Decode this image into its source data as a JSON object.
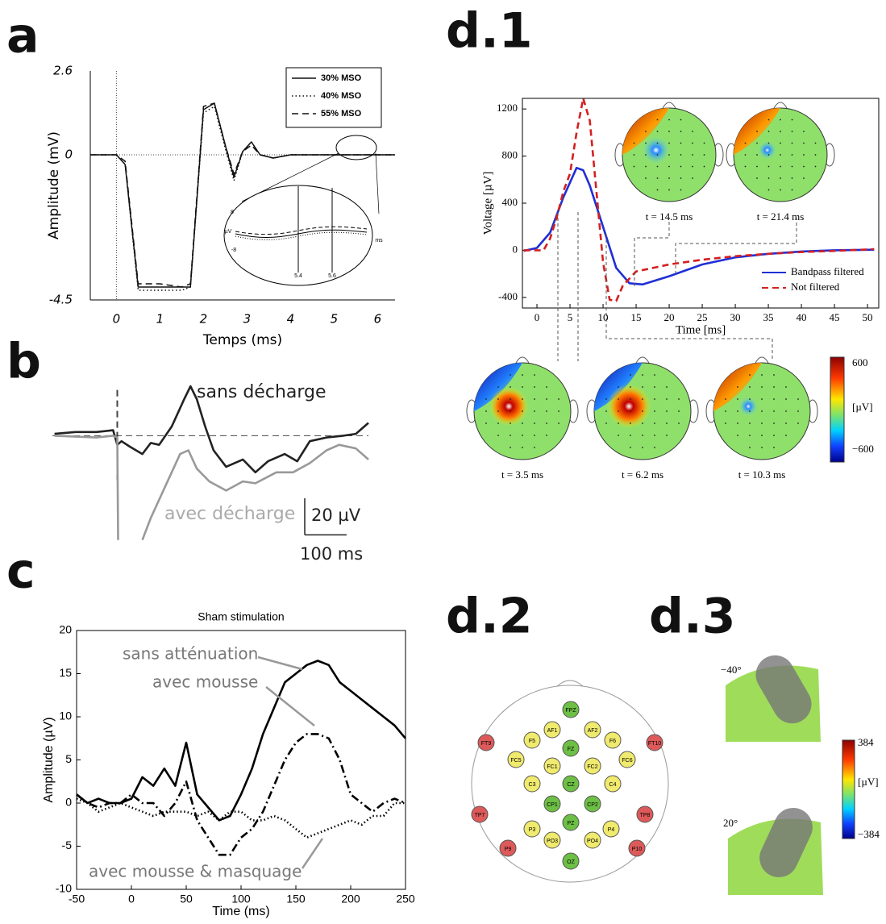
{
  "panels": {
    "a": "a",
    "b": "b",
    "c": "c",
    "d1": "d.1",
    "d2": "d.2",
    "d3": "d.3"
  },
  "chart_data": [
    {
      "type": "line",
      "frame": "left-bottom",
      "zero_lines": true,
      "xlabel": "Temps (ms)",
      "ylabel": "Amplitude (mV)",
      "xlim": [
        -0.6,
        6.4
      ],
      "ylim": [
        -4.5,
        2.6
      ],
      "xticks": [
        0,
        1,
        2,
        3,
        4,
        5,
        6
      ],
      "yticks": [
        -4.5,
        0,
        2.6
      ],
      "legend": "upper right",
      "x": [
        -0.6,
        0,
        0.2,
        0.5,
        1,
        1.5,
        1.7,
        2.0,
        2.25,
        2.5,
        2.7,
        2.9,
        3.1,
        3.3,
        3.6,
        4,
        5,
        6,
        6.4
      ],
      "series": [
        {
          "name": "30% MSO",
          "color": "#111111",
          "dash": "solid",
          "values": [
            0,
            0,
            -0.3,
            -4.1,
            -4.1,
            -4.1,
            -4.1,
            1.4,
            1.6,
            0.3,
            -0.7,
            0.1,
            0.4,
            0,
            -0.1,
            0,
            0,
            0,
            0
          ]
        },
        {
          "name": "40% MSO",
          "color": "#111111",
          "dash": "dotted",
          "values": [
            0,
            0,
            -0.3,
            -4.2,
            -4.2,
            -4.2,
            -4.1,
            1.3,
            1.5,
            0.2,
            -0.8,
            0.1,
            0.4,
            0,
            -0.1,
            0,
            0,
            0,
            0
          ]
        },
        {
          "name": "55% MSO",
          "color": "#111111",
          "dash": "dashed",
          "values": [
            0,
            0,
            -0.2,
            -4.0,
            -4.0,
            -4.1,
            -4.0,
            1.5,
            1.6,
            0.3,
            -0.6,
            0.1,
            0.3,
            0,
            -0.1,
            0,
            0,
            0,
            0
          ]
        }
      ],
      "inset_labels": [
        "8",
        "µV",
        "-8",
        "ms",
        "5.4",
        "5.6"
      ]
    },
    {
      "type": "line",
      "frame": "none",
      "zero_lines": true,
      "xlim": [
        -155,
        600
      ],
      "ylim": [
        -58,
        31
      ],
      "scalebar": {
        "y": 20,
        "y_label": "20 µV",
        "x": 100,
        "x_label": "100 ms"
      },
      "series": [
        {
          "name": "sans décharge",
          "color": "#222222",
          "dash": "solid",
          "x": [
            -150,
            -100,
            -50,
            -10,
            0,
            10,
            30,
            60,
            80,
            100,
            130,
            160,
            175,
            190,
            210,
            230,
            260,
            300,
            330,
            360,
            400,
            430,
            460,
            500,
            540,
            570,
            600
          ],
          "values": [
            1,
            2,
            2,
            3,
            -5,
            -3,
            -6,
            -10,
            -4,
            -5,
            5,
            20,
            27,
            20,
            5,
            -8,
            -17,
            -13,
            -20,
            -14,
            -10,
            -14,
            -3,
            -1,
            0,
            1,
            7
          ]
        },
        {
          "name": "avec décharge",
          "color": "#999999",
          "dash": "solid",
          "x": [
            -150,
            -50,
            -10,
            0,
            2,
            5,
            60,
            80,
            120,
            150,
            170,
            190,
            220,
            260,
            300,
            330,
            380,
            420,
            460,
            500,
            530,
            570,
            600
          ],
          "values": [
            0,
            -1,
            0,
            -1,
            -57,
            null,
            -57,
            -45,
            -25,
            -10,
            -8,
            -18,
            -25,
            -30,
            -25,
            -26,
            -20,
            -20,
            -15,
            -8,
            -5,
            -7,
            -13
          ]
        }
      ]
    },
    {
      "type": "line",
      "frame": "box",
      "title": "Sham stimulation",
      "xlabel": "Time (ms)",
      "ylabel": "Amplitude (µV)",
      "xlim": [
        -50,
        250
      ],
      "ylim": [
        -10,
        20
      ],
      "xticks": [
        -50,
        0,
        50,
        100,
        150,
        200,
        250
      ],
      "yticks": [
        -10,
        -5,
        0,
        5,
        10,
        15,
        20
      ],
      "x": [
        -50,
        -40,
        -30,
        -20,
        -10,
        0,
        10,
        20,
        30,
        40,
        50,
        60,
        70,
        80,
        90,
        100,
        110,
        120,
        130,
        140,
        150,
        160,
        170,
        180,
        190,
        200,
        210,
        220,
        230,
        240,
        250
      ],
      "series": [
        {
          "name": "sans atténuation",
          "color": "#000000",
          "dash": "solid",
          "values": [
            1,
            0,
            0.5,
            0,
            0,
            0.5,
            3,
            2,
            4,
            2,
            7,
            1,
            -0.5,
            -2,
            -1.5,
            1,
            4,
            8,
            11,
            14,
            15,
            16,
            16.5,
            16,
            14,
            13,
            12,
            11,
            10,
            9,
            7.5
          ]
        },
        {
          "name": "avec mousse",
          "color": "#000000",
          "dash": "dashdot",
          "values": [
            1,
            0,
            -0.5,
            0,
            0,
            1,
            0,
            0,
            -1.5,
            0,
            2.5,
            -2,
            -4,
            -6,
            -6,
            -4,
            -3,
            -1,
            2,
            5,
            7,
            8,
            8,
            7.5,
            5,
            1,
            0,
            -1,
            0,
            0.5,
            0
          ]
        },
        {
          "name": "avec mousse & masquage",
          "color": "#000000",
          "dash": "dotted",
          "values": [
            0.5,
            0,
            -1,
            -0.5,
            0,
            -0.5,
            -1,
            -1.5,
            -1,
            -1,
            -1,
            -1.5,
            -1,
            -2,
            -1,
            -1,
            -2,
            -2,
            -1.5,
            -2,
            -3,
            -4,
            -3.5,
            -3,
            -2.5,
            -2,
            -2.5,
            -1.5,
            -1.5,
            0,
            0
          ]
        }
      ]
    },
    {
      "type": "line",
      "frame": "box",
      "xlabel": "Time [ms]",
      "ylabel": "Voltage [µV]",
      "xlim": [
        -2.2,
        51.7
      ],
      "ylim": [
        -490,
        1290
      ],
      "xticks": [
        0,
        5,
        10,
        15,
        20,
        25,
        30,
        35,
        40,
        45,
        50
      ],
      "yticks": [
        -400,
        0,
        400,
        800,
        1200
      ],
      "legend": "lower right",
      "series": [
        {
          "name": "Bandpass filtered",
          "color": "#1f2fd6",
          "dash": "solid",
          "x": [
            -2,
            0,
            2,
            4,
            6,
            7,
            8,
            10,
            12,
            14,
            16,
            20,
            25,
            30,
            35,
            40,
            45,
            51
          ],
          "values": [
            -5,
            20,
            150,
            450,
            700,
            680,
            550,
            200,
            -150,
            -280,
            -290,
            -220,
            -120,
            -60,
            -30,
            -10,
            0,
            5
          ]
        },
        {
          "name": "Not filtered",
          "color": "#d42020",
          "dash": "dashed",
          "x": [
            -2,
            1,
            2,
            3,
            4,
            5,
            6,
            7,
            8,
            9,
            10,
            11,
            12,
            13,
            15,
            20,
            25,
            30,
            35,
            40,
            45,
            51
          ],
          "values": [
            0,
            0,
            100,
            280,
            500,
            650,
            1000,
            1290,
            1100,
            500,
            -100,
            -420,
            -430,
            -300,
            -180,
            -120,
            -80,
            -50,
            -30,
            -15,
            -5,
            10
          ]
        }
      ]
    }
  ],
  "topomaps": {
    "labels": [
      "t = 14.5 ms",
      "t = 21.4 ms",
      "t = 3.5 ms",
      "t = 6.2 ms",
      "t = 10.3 ms"
    ],
    "colorbar": {
      "max": "600",
      "unit": "[µV]",
      "min": "−600"
    }
  },
  "electrodes": [
    {
      "label": "FPZ",
      "color": "#6dbf45"
    },
    {
      "label": "AF1",
      "color": "#f0ea6e"
    },
    {
      "label": "AF2",
      "color": "#f0ea6e"
    },
    {
      "label": "F5",
      "color": "#f0ea6e"
    },
    {
      "label": "FZ",
      "color": "#6dbf45"
    },
    {
      "label": "F6",
      "color": "#f0ea6e"
    },
    {
      "label": "FT9",
      "color": "#de5a5a"
    },
    {
      "label": "FT10",
      "color": "#de5a5a"
    },
    {
      "label": "FC5",
      "color": "#f0ea6e"
    },
    {
      "label": "FC1",
      "color": "#f0ea6e"
    },
    {
      "label": "FC2",
      "color": "#f0ea6e"
    },
    {
      "label": "FC6",
      "color": "#f0ea6e"
    },
    {
      "label": "C3",
      "color": "#f0ea6e"
    },
    {
      "label": "CZ",
      "color": "#6dbf45"
    },
    {
      "label": "C4",
      "color": "#f0ea6e"
    },
    {
      "label": "TP7",
      "color": "#de5a5a"
    },
    {
      "label": "CP1",
      "color": "#6dbf45"
    },
    {
      "label": "CP2",
      "color": "#6dbf45"
    },
    {
      "label": "TP8",
      "color": "#de5a5a"
    },
    {
      "label": "P3",
      "color": "#f0ea6e"
    },
    {
      "label": "PZ",
      "color": "#6dbf45"
    },
    {
      "label": "P4",
      "color": "#f0ea6e"
    },
    {
      "label": "PO3",
      "color": "#f0ea6e"
    },
    {
      "label": "PO4",
      "color": "#f0ea6e"
    },
    {
      "label": "P9",
      "color": "#de5a5a"
    },
    {
      "label": "P10",
      "color": "#de5a5a"
    },
    {
      "label": "OZ",
      "color": "#6dbf45"
    }
  ],
  "d3": {
    "angles": [
      "−40°",
      "20°"
    ],
    "colorbar": {
      "max": "384",
      "unit": "[µV]",
      "min": "−384"
    }
  }
}
